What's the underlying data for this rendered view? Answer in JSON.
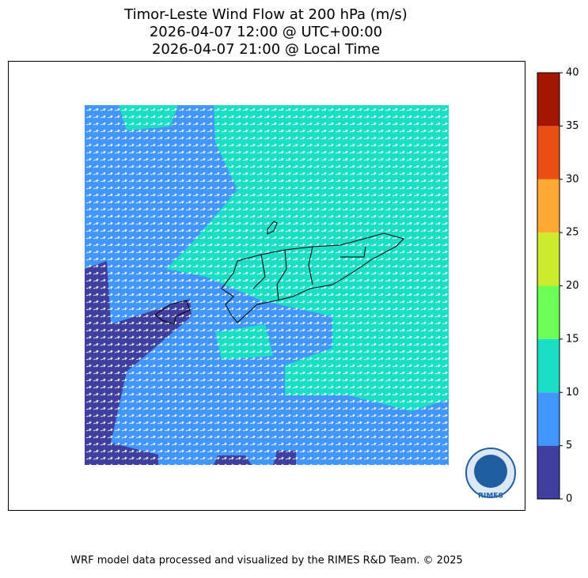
{
  "header": {
    "title_lines": [
      "Timor-Leste Wind Flow at 200 hPa (m/s)",
      "2026-04-07 12:00 @ UTC+00:00",
      "2026-04-07 21:00 @ Local Time"
    ]
  },
  "colorbar": {
    "ticks": [
      0,
      5,
      10,
      15,
      20,
      25,
      30,
      35,
      40
    ],
    "colors": [
      "#3f3fa0",
      "#4196ff",
      "#1adfc4",
      "#6cff55",
      "#cdeb2d",
      "#fea932",
      "#eb4f12",
      "#a31702"
    ]
  },
  "logo": {
    "text": "RIMES"
  },
  "footer": {
    "text": "WRF model data processed and visualized by the RIMES R&D Team. © 2025"
  }
}
